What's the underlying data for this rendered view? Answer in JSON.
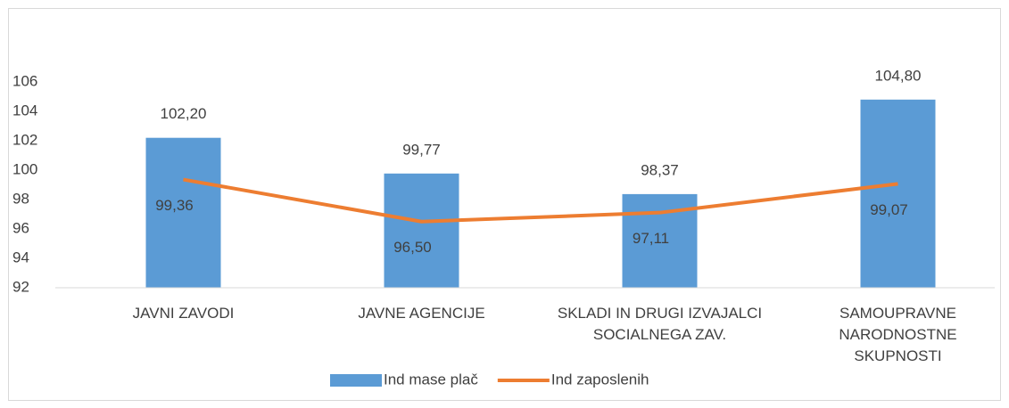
{
  "chart_data": {
    "type": "bar",
    "categories": [
      "JAVNI ZAVODI",
      "JAVNE AGENCIJE",
      "SKLADI IN DRUGI IZVAJALCI SOCIALNEGA ZAV.",
      "SAMOUPRAVNE NARODNOSTNE SKUPNOSTI"
    ],
    "series": [
      {
        "name": "Ind mase plač",
        "type": "bar",
        "color": "#5b9bd5",
        "values": [
          102.2,
          99.77,
          98.37,
          104.8
        ],
        "value_labels": [
          "102,20",
          "99,77",
          "98,37",
          "104,80"
        ]
      },
      {
        "name": "Ind zaposlenih",
        "type": "line",
        "color": "#ed7d31",
        "values": [
          99.36,
          96.5,
          97.11,
          99.07
        ],
        "value_labels": [
          "99,36",
          "96,50",
          "97,11",
          "99,07"
        ]
      }
    ],
    "ylim": [
      92,
      106
    ],
    "yticks": [
      92,
      94,
      96,
      98,
      100,
      102,
      104,
      106
    ],
    "grid": false,
    "legend": "bottom"
  }
}
